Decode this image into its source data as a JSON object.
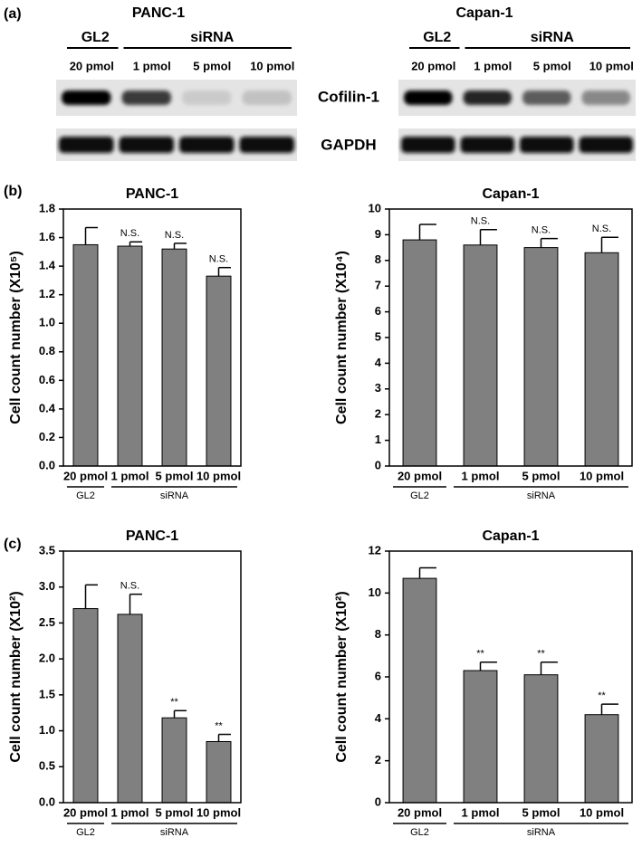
{
  "panel_labels": [
    "(a)",
    "(b)",
    "(c)"
  ],
  "blot": {
    "panels": [
      {
        "title": "PANC-1",
        "groups": [
          "GL2",
          "siRNA"
        ],
        "lanes": [
          "20 pmol",
          "1 pmol",
          "5 pmol",
          "10 pmol"
        ]
      },
      {
        "title": "Capan-1",
        "groups": [
          "GL2",
          "siRNA"
        ],
        "lanes": [
          "20 pmol",
          "1 pmol",
          "5 pmol",
          "10 pmol"
        ]
      }
    ],
    "bands": [
      "Cofilin-1",
      "GAPDH"
    ]
  },
  "chart_data": [
    {
      "type": "bar",
      "title": "PANC-1",
      "ylabel": "Cell count number (X10⁵)",
      "categories": [
        "20 pmol",
        "1 pmol",
        "5 pmol",
        "10 pmol"
      ],
      "group_labels": [
        "GL2",
        "siRNA"
      ],
      "values": [
        1.55,
        1.54,
        1.52,
        1.33
      ],
      "errors": [
        0.12,
        0.03,
        0.04,
        0.06
      ],
      "annotations": [
        null,
        "N.S.",
        "N.S.",
        "N.S."
      ],
      "color": "#808080",
      "ylim": [
        0,
        1.8
      ],
      "yticks": [
        {
          "value": 0,
          "label": "0.0"
        },
        0.2,
        0.4,
        0.6,
        0.8,
        {
          "value": 1,
          "label": "1.0"
        },
        1.2,
        1.4,
        1.6,
        1.8
      ]
    },
    {
      "type": "bar",
      "title": "Capan-1",
      "ylabel": "Cell count number (X10⁴)",
      "categories": [
        "20 pmol",
        "1 pmol",
        "5 pmol",
        "10 pmol"
      ],
      "group_labels": [
        "GL2",
        "siRNA"
      ],
      "values": [
        8.8,
        8.6,
        8.5,
        8.3
      ],
      "errors": [
        0.6,
        0.6,
        0.35,
        0.6
      ],
      "annotations": [
        null,
        "N.S.",
        "N.S.",
        "N.S."
      ],
      "color": "#808080",
      "ylim": [
        0,
        10
      ],
      "yticks": [
        0,
        1,
        2,
        3,
        4,
        5,
        6,
        7,
        8,
        9,
        10
      ]
    },
    {
      "type": "bar",
      "title": "PANC-1",
      "ylabel": "Cell count number (X10²)",
      "categories": [
        "20 pmol",
        "1 pmol",
        "5 pmol",
        "10 pmol"
      ],
      "group_labels": [
        "GL2",
        "siRNA"
      ],
      "values": [
        2.7,
        2.62,
        1.18,
        0.85
      ],
      "errors": [
        0.33,
        0.28,
        0.1,
        0.1
      ],
      "annotations": [
        null,
        "N.S.",
        "**",
        "**"
      ],
      "color": "#808080",
      "ylim": [
        0,
        3.5
      ],
      "yticks": [
        {
          "value": 0,
          "label": "0.0"
        },
        0.5,
        {
          "value": 1,
          "label": "1.0"
        },
        1.5,
        {
          "value": 2,
          "label": "2.0"
        },
        2.5,
        {
          "value": 3,
          "label": "3.0"
        },
        3.5
      ]
    },
    {
      "type": "bar",
      "title": "Capan-1",
      "ylabel": "Cell count number (X10²)",
      "categories": [
        "20 pmol",
        "1 pmol",
        "5 pmol",
        "10 pmol"
      ],
      "group_labels": [
        "GL2",
        "siRNA"
      ],
      "values": [
        10.7,
        6.3,
        6.1,
        4.2
      ],
      "errors": [
        0.5,
        0.4,
        0.6,
        0.5
      ],
      "annotations": [
        null,
        "**",
        "**",
        "**"
      ],
      "color": "#808080",
      "ylim": [
        0,
        12
      ],
      "yticks": [
        0,
        2,
        4,
        6,
        8,
        10,
        12
      ]
    }
  ]
}
